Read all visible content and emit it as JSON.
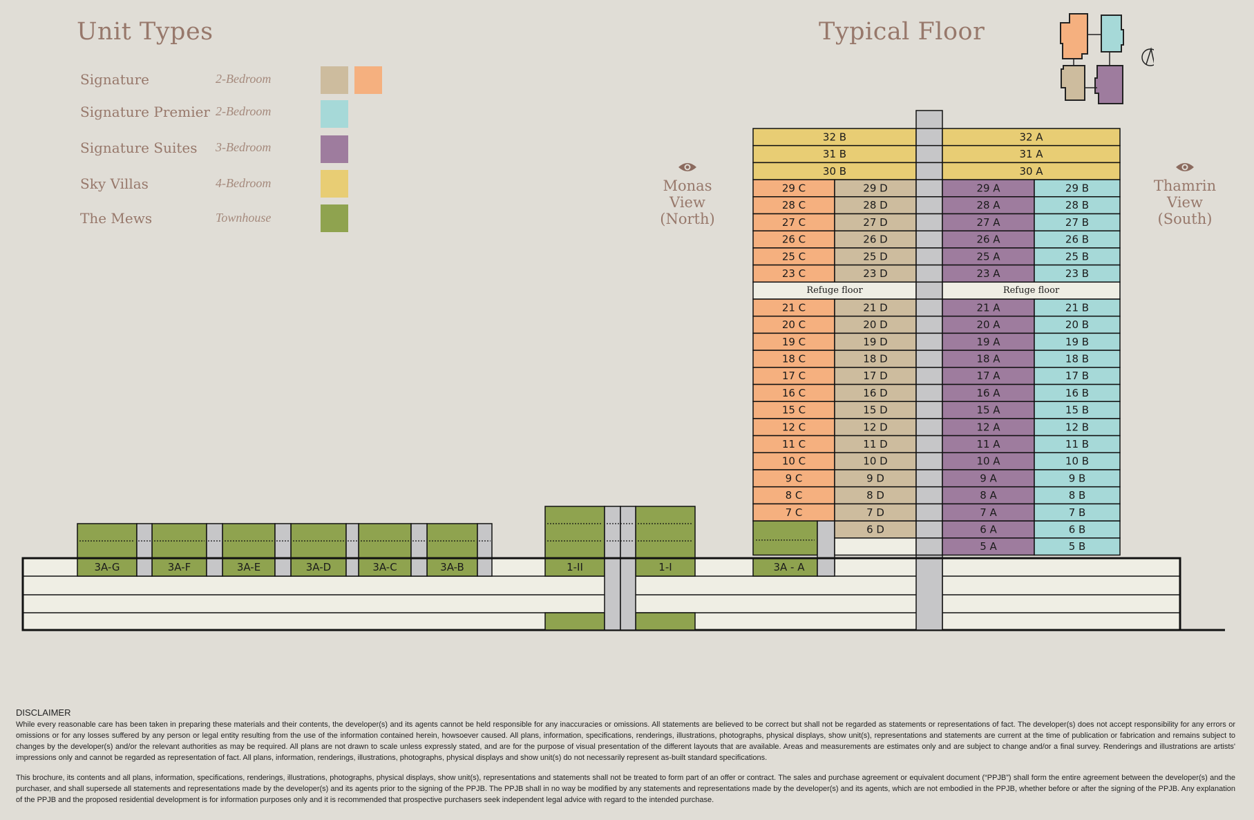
{
  "unit_types": {
    "heading": "Unit Types",
    "items": [
      {
        "name": "Signature",
        "type": "2-Bedroom",
        "colors": [
          "#cdbc9e",
          "#f5b07f"
        ]
      },
      {
        "name": "Signature Premier",
        "type": "2-Bedroom",
        "colors": [
          "#a6d9d8"
        ]
      },
      {
        "name": "Signature Suites",
        "type": "3-Bedroom",
        "colors": [
          "#9e7c9e"
        ]
      },
      {
        "name": "Sky Villas",
        "type": "4-Bedroom",
        "colors": [
          "#e8cd74"
        ]
      },
      {
        "name": "The Mews",
        "type": "Townhouse",
        "colors": [
          "#8fa34f"
        ]
      }
    ]
  },
  "typical_floor": {
    "heading": "Typical Floor",
    "keyplan_colors": [
      "#f5b07f",
      "#a6d9d8",
      "#cdbc9e",
      "#9e7c9e"
    ],
    "north_icon": "compass-north-icon"
  },
  "views": {
    "left": {
      "line1": "Monas View",
      "line2": "(North)",
      "icon": "eye-icon"
    },
    "right": {
      "line1": "Thamrin View",
      "line2": "(South)",
      "icon": "eye-icon"
    }
  },
  "colors": {
    "signature_b": "#cdbc9e",
    "signature_a": "#f5b07f",
    "premier": "#a6d9d8",
    "suites": "#9e7c9e",
    "villas": "#e8cd74",
    "mews": "#8fa34f",
    "core": "#c6c6c8",
    "podium": "#efeee4",
    "refuge": "#efeee4"
  },
  "tower": {
    "sky_villas": [
      {
        "left": "32 B",
        "right": "32 A"
      },
      {
        "left": "31 B",
        "right": "31 A"
      },
      {
        "left": "30 B",
        "right": "30 A"
      }
    ],
    "floors": [
      {
        "c": "29 C",
        "d": "29 D",
        "a": "29 A",
        "b": "29 B"
      },
      {
        "c": "28 C",
        "d": "28 D",
        "a": "28 A",
        "b": "28 B"
      },
      {
        "c": "27 C",
        "d": "27 D",
        "a": "27 A",
        "b": "27 B"
      },
      {
        "c": "26 C",
        "d": "26 D",
        "a": "26 A",
        "b": "26 B"
      },
      {
        "c": "25 C",
        "d": "25 D",
        "a": "25 A",
        "b": "25 B"
      },
      {
        "c": "23 C",
        "d": "23 D",
        "a": "23 A",
        "b": "23 B"
      },
      {
        "refuge": "Refuge floor"
      },
      {
        "c": "21 C",
        "d": "21 D",
        "a": "21 A",
        "b": "21 B"
      },
      {
        "c": "20 C",
        "d": "20 D",
        "a": "20 A",
        "b": "20 B"
      },
      {
        "c": "19 C",
        "d": "19 D",
        "a": "19 A",
        "b": "19 B"
      },
      {
        "c": "18 C",
        "d": "18 D",
        "a": "18 A",
        "b": "18 B"
      },
      {
        "c": "17 C",
        "d": "17 D",
        "a": "17 A",
        "b": "17 B"
      },
      {
        "c": "16 C",
        "d": "16 D",
        "a": "16 A",
        "b": "16 B"
      },
      {
        "c": "15 C",
        "d": "15 D",
        "a": "15 A",
        "b": "15 B"
      },
      {
        "c": "12 C",
        "d": "12 D",
        "a": "12 A",
        "b": "12 B"
      },
      {
        "c": "11 C",
        "d": "11 D",
        "a": "11 A",
        "b": "11 B"
      },
      {
        "c": "10 C",
        "d": "10 D",
        "a": "10 A",
        "b": "10 B"
      },
      {
        "c": "9 C",
        "d": "9 D",
        "a": "9 A",
        "b": "9 B"
      },
      {
        "c": "8 C",
        "d": "8 D",
        "a": "8 A",
        "b": "8 B"
      },
      {
        "c": "7 C",
        "d": "7 D",
        "a": "7 A",
        "b": "7 B"
      },
      {
        "mews_c": true,
        "d": "6 D",
        "a": "6 A",
        "b": "6 B"
      },
      {
        "mews_c": true,
        "d": "",
        "a": "5 A",
        "b": "5 B"
      }
    ]
  },
  "mews": {
    "left_row": [
      "3A-G",
      "3A-F",
      "3A-E",
      "3A-D",
      "3A-C",
      "3A-B"
    ],
    "middle": [
      "1-II",
      "1-I"
    ],
    "tower_base": "3A - A"
  },
  "disclaimer": {
    "title": "DISCLAIMER",
    "p1": "While every reasonable care has been taken in preparing these materials and their contents, the developer(s) and its agents cannot be held responsible for any inaccuracies or omissions. All statements are believed to be correct but shall not be regarded as statements or representations of fact. The developer(s) does not accept responsibility for any errors or omissions or for any losses suffered by any person or legal entity resulting from the use of the information contained herein, howsoever caused. All plans, information, specifications, renderings, illustrations, photographs, physical displays, show unit(s), representations and statements are current at the time of publication or fabrication and remains subject to changes by the developer(s) and/or the relevant authorities as may be required. All plans are not drawn to scale unless expressly stated, and are for the purpose of visual presentation of the different layouts that are available. Areas and measurements are estimates only and are subject to change and/or a final survey. Renderings and illustrations are artists' impressions only and cannot be regarded as representation of fact. All plans, information, renderings, illustrations, photographs, physical displays and show unit(s) do not necessarily represent as-built standard specifications.",
    "p2": "This brochure, its contents and all plans, information, specifications, renderings, illustrations, photographs, physical displays, show unit(s), representations and statements shall not be treated to form part of an offer or contract. The sales and purchase agreement or equivalent document (“PPJB”) shall form the entire agreement between the developer(s) and the purchaser, and shall supersede all statements and representations made by the developer(s) and its agents prior to the signing of the PPJB. The PPJB shall in no way be modified by any statements and representations made by the developer(s) and its agents, which are not embodied in the PPJB, whether before or after the signing of the PPJB. Any explanation of the PPJB and the proposed residential development is for information purposes only and it is recommended that prospective purchasers seek independent legal advice with regard to the intended purchase."
  }
}
